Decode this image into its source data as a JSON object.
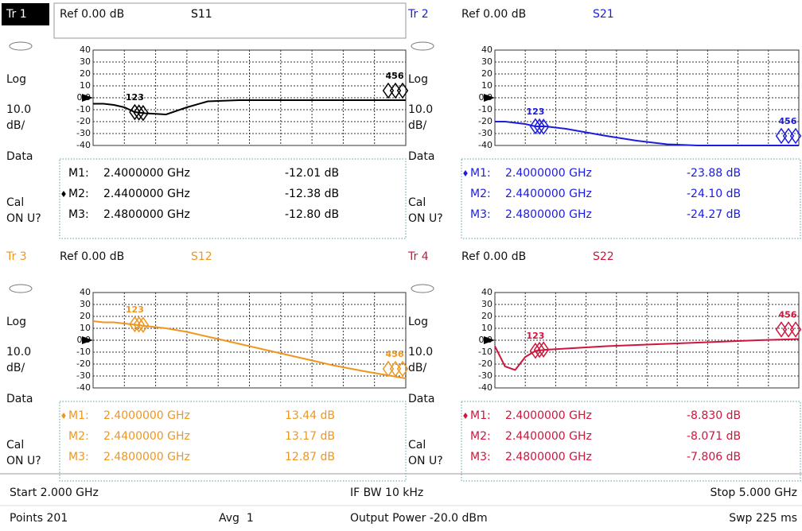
{
  "chart_data": [
    {
      "type": "line",
      "trace_label": "Tr 1",
      "ref_label": "Ref 0.00 dB",
      "title": "S11",
      "side_labels": [
        "Log",
        "10.0",
        "dB/",
        "Data",
        "Cal",
        "ON U?"
      ],
      "xlim": [
        2,
        5
      ],
      "ylim": [
        -40,
        40
      ],
      "yticks": [
        40,
        30,
        20,
        10,
        {
          "value": 0,
          "label": "0.0"
        },
        -10,
        -20,
        -30,
        -40
      ],
      "x": [
        2.0,
        2.1,
        2.2,
        2.3,
        2.4,
        2.5,
        2.7,
        2.9,
        3.1,
        3.4,
        3.7,
        4.0,
        4.3,
        4.6,
        5.0
      ],
      "series": [
        {
          "name": "S11",
          "color": "#000000",
          "values": [
            -5,
            -5,
            -6,
            -8,
            -12,
            -13,
            -14,
            -8,
            -3,
            -2,
            -2,
            -2,
            -2,
            -2,
            -2
          ]
        }
      ],
      "marker_groups": [
        "123",
        "456"
      ],
      "active_marker": 1,
      "markers": {
        "names": [
          "M1:",
          "M2:",
          "M3:"
        ],
        "x": [
          2.4,
          2.44,
          2.48
        ],
        "x_labels": [
          "2.4000000 GHz",
          "2.4400000 GHz",
          "2.4800000 GHz"
        ],
        "values": [
          -12.01,
          -12.38,
          -12.8
        ],
        "value_labels": [
          "-12.01 dB",
          "-12.38 dB",
          "-12.80 dB"
        ]
      }
    },
    {
      "type": "line",
      "trace_label": "Tr 2",
      "ref_label": "Ref 0.00 dB",
      "title": "S21",
      "side_labels": [
        "Log",
        "10.0",
        "dB/",
        "Data",
        "Cal",
        "ON U?"
      ],
      "xlim": [
        2,
        5
      ],
      "ylim": [
        -40,
        40
      ],
      "yticks": [
        40,
        30,
        20,
        10,
        {
          "value": 0,
          "label": "0.0"
        },
        -10,
        -20,
        -30,
        -40
      ],
      "x": [
        2.0,
        2.1,
        2.2,
        2.3,
        2.4,
        2.5,
        2.7,
        2.9,
        3.1,
        3.4,
        3.7,
        4.0,
        4.3,
        4.6,
        5.0
      ],
      "series": [
        {
          "name": "S21",
          "color": "#1c1ce0",
          "values": [
            -20,
            -20,
            -21,
            -22,
            -24,
            -24,
            -26,
            -29,
            -32,
            -36,
            -39,
            -40,
            -40,
            -40,
            -40
          ]
        }
      ],
      "marker_groups": [
        "123",
        "456"
      ],
      "active_marker": 0,
      "markers": {
        "names": [
          "M1:",
          "M2:",
          "M3:"
        ],
        "x": [
          2.4,
          2.44,
          2.48
        ],
        "x_labels": [
          "2.4000000 GHz",
          "2.4400000 GHz",
          "2.4800000 GHz"
        ],
        "values": [
          -23.88,
          -24.1,
          -24.27
        ],
        "value_labels": [
          "-23.88 dB",
          "-24.10 dB",
          "-24.27 dB"
        ]
      }
    },
    {
      "type": "line",
      "trace_label": "Tr 3",
      "ref_label": "Ref 0.00 dB",
      "title": "S12",
      "side_labels": [
        "Log",
        "10.0",
        "dB/",
        "Data",
        "Cal",
        "ON U?"
      ],
      "xlim": [
        2,
        5
      ],
      "ylim": [
        -40,
        40
      ],
      "yticks": [
        40,
        30,
        20,
        10,
        {
          "value": 0,
          "label": "0.0"
        },
        -10,
        -20,
        -30,
        -40
      ],
      "x": [
        2.0,
        2.1,
        2.2,
        2.3,
        2.4,
        2.5,
        2.7,
        2.9,
        3.1,
        3.4,
        3.7,
        4.0,
        4.3,
        4.6,
        5.0
      ],
      "series": [
        {
          "name": "S12",
          "color": "#f0961e",
          "values": [
            16,
            15,
            15,
            14,
            13,
            12,
            10,
            7,
            3,
            -3,
            -9,
            -15,
            -21,
            -26,
            -32
          ]
        }
      ],
      "marker_groups": [
        "123",
        "456"
      ],
      "active_marker": 0,
      "markers": {
        "names": [
          "M1:",
          "M2:",
          "M3:"
        ],
        "x": [
          2.4,
          2.44,
          2.48
        ],
        "x_labels": [
          "2.4000000 GHz",
          "2.4400000 GHz",
          "2.4800000 GHz"
        ],
        "values": [
          13.44,
          13.17,
          12.87
        ],
        "value_labels": [
          "13.44 dB",
          "13.17 dB",
          "12.87 dB"
        ]
      }
    },
    {
      "type": "line",
      "trace_label": "Tr 4",
      "ref_label": "Ref 0.00 dB",
      "title": "S22",
      "side_labels": [
        "Log",
        "10.0",
        "dB/",
        "Data",
        "Cal",
        "ON U?"
      ],
      "xlim": [
        2,
        5
      ],
      "ylim": [
        -40,
        40
      ],
      "yticks": [
        40,
        30,
        20,
        10,
        {
          "value": 0,
          "label": "0.0"
        },
        -10,
        -20,
        -30,
        -40
      ],
      "x": [
        2.0,
        2.1,
        2.2,
        2.3,
        2.4,
        2.5,
        2.7,
        2.9,
        3.1,
        3.4,
        3.7,
        4.0,
        4.3,
        4.6,
        5.0
      ],
      "series": [
        {
          "name": "S22",
          "color": "#d0143c",
          "values": [
            -5,
            -22,
            -25,
            -14,
            -9,
            -8,
            -7,
            -6,
            -5,
            -4,
            -3,
            -2,
            -1,
            0,
            1
          ]
        }
      ],
      "marker_groups": [
        "123",
        "456"
      ],
      "active_marker": 0,
      "markers": {
        "names": [
          "M1:",
          "M2:",
          "M3:"
        ],
        "x": [
          2.4,
          2.44,
          2.48
        ],
        "x_labels": [
          "2.4000000 GHz",
          "2.4400000 GHz",
          "2.4800000 GHz"
        ],
        "values": [
          -8.83,
          -8.071,
          -7.806
        ],
        "value_labels": [
          "-8.830 dB",
          "-8.071 dB",
          "-7.806 dB"
        ]
      }
    }
  ],
  "status": {
    "start": "Start 2.000 GHz",
    "if_bw": "IF BW 10 kHz",
    "stop": "Stop 5.000 GHz",
    "points": "Points 201",
    "avg": "Avg  1",
    "power": "Output Power -20.0 dBm",
    "sweep": "Swp 225 ms"
  }
}
